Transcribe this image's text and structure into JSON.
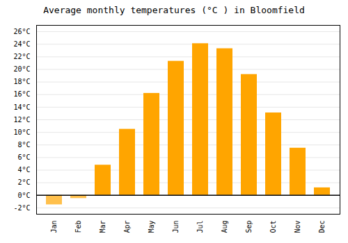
{
  "chart_data": {
    "type": "bar",
    "title": "Average monthly temperatures (°C ) in Bloomfield",
    "categories": [
      "Jan",
      "Feb",
      "Mar",
      "Apr",
      "May",
      "Jun",
      "Jul",
      "Aug",
      "Sep",
      "Oct",
      "Nov",
      "Dec"
    ],
    "values": [
      -1.5,
      -0.5,
      4.8,
      10.5,
      16.2,
      21.3,
      24.1,
      23.3,
      19.2,
      13.1,
      7.5,
      1.2
    ],
    "colors": [
      "#FFC04C",
      "#FFC04C",
      "#FFA500",
      "#FFA500",
      "#FFA500",
      "#FFA500",
      "#FFA500",
      "#FFA500",
      "#FFA500",
      "#FFA500",
      "#FFA500",
      "#FFA500"
    ],
    "ylim": [
      -3,
      27
    ],
    "yticks": [
      {
        "value": -2,
        "label": "-2°C"
      },
      {
        "value": 0,
        "label": "0°C"
      },
      {
        "value": 2,
        "label": "2°C"
      },
      {
        "value": 4,
        "label": "4°C"
      },
      {
        "value": 6,
        "label": "6°C"
      },
      {
        "value": 8,
        "label": "8°C"
      },
      {
        "value": 10,
        "label": "10°C"
      },
      {
        "value": 12,
        "label": "12°C"
      },
      {
        "value": 14,
        "label": "14°C"
      },
      {
        "value": 16,
        "label": "16°C"
      },
      {
        "value": 18,
        "label": "18°C"
      },
      {
        "value": 20,
        "label": "20°C"
      },
      {
        "value": 22,
        "label": "22°C"
      },
      {
        "value": 24,
        "label": "24°C"
      },
      {
        "value": 26,
        "label": "26°C"
      }
    ],
    "grid": true
  }
}
